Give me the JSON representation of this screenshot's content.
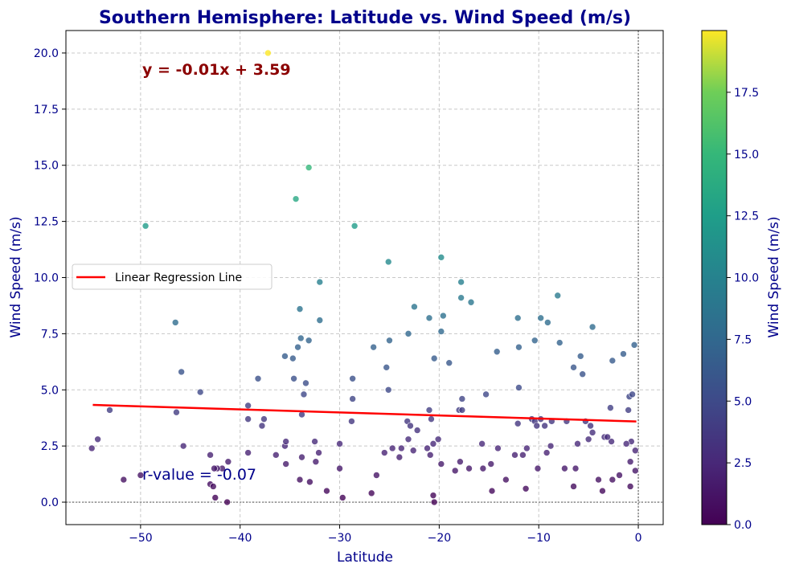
{
  "chart_data": {
    "type": "scatter",
    "title": "Southern Hemisphere: Latitude vs. Wind Speed (m/s)",
    "xlabel": "Latitude",
    "ylabel": "Wind Speed (m/s)",
    "xlim": [
      -57.5,
      2.5
    ],
    "ylim": [
      -1,
      21
    ],
    "xticks": [
      -50,
      -40,
      -30,
      -20,
      -10,
      0
    ],
    "xtick_labels": [
      "−50",
      "−40",
      "−30",
      "−20",
      "−10",
      "0"
    ],
    "yticks": [
      0,
      2.5,
      5,
      7.5,
      10,
      12.5,
      15,
      17.5,
      20
    ],
    "ytick_labels": [
      "0.0",
      "2.5",
      "5.0",
      "7.5",
      "10.0",
      "12.5",
      "15.0",
      "17.5",
      "20.0"
    ],
    "grid": true,
    "legend": {
      "placement": "center-left",
      "entries": [
        "Linear Regression Line"
      ]
    },
    "colorbar": {
      "label": "Wind Speed (m/s)",
      "colormap": "viridis",
      "range": [
        0,
        20
      ],
      "ticks": [
        0,
        2.5,
        5,
        7.5,
        10,
        12.5,
        15,
        17.5
      ],
      "tick_labels": [
        "0.0",
        "2.5",
        "5.0",
        "7.5",
        "10.0",
        "12.5",
        "15.0",
        "17.5"
      ]
    },
    "regression": {
      "slope": -0.0135,
      "intercept": 3.59,
      "x_range": [
        -54.8,
        -0.2
      ],
      "color": "#ff0000"
    },
    "annotations": {
      "equation": "y = -0.01x + 3.59",
      "r_value": "r-value = -0.07"
    },
    "colors": {
      "title": "#00008b",
      "axis_text": "#00008b",
      "equation": "#8b0000",
      "regression": "#ff0000"
    },
    "points": [
      [
        -37.2,
        20.0
      ],
      [
        -33.1,
        14.9
      ],
      [
        -34.4,
        13.5
      ],
      [
        -49.5,
        12.3
      ],
      [
        -28.5,
        12.3
      ],
      [
        -25.1,
        10.7
      ],
      [
        -19.8,
        10.9
      ],
      [
        -32.0,
        9.8
      ],
      [
        -17.8,
        9.8
      ],
      [
        -22.5,
        8.7
      ],
      [
        -34.0,
        8.6
      ],
      [
        -8.1,
        9.2
      ],
      [
        -17.8,
        9.1
      ],
      [
        -16.8,
        8.9
      ],
      [
        -46.5,
        8.0
      ],
      [
        -32.0,
        8.1
      ],
      [
        -21.0,
        8.2
      ],
      [
        -19.6,
        8.3
      ],
      [
        -12.1,
        8.2
      ],
      [
        -9.8,
        8.2
      ],
      [
        -9.1,
        8.0
      ],
      [
        -4.6,
        7.8
      ],
      [
        -19.8,
        7.6
      ],
      [
        -23.1,
        7.5
      ],
      [
        -33.9,
        7.3
      ],
      [
        -33.1,
        7.2
      ],
      [
        -25.0,
        7.2
      ],
      [
        -10.4,
        7.2
      ],
      [
        -7.9,
        7.1
      ],
      [
        -0.4,
        7.0
      ],
      [
        -26.6,
        6.9
      ],
      [
        -34.2,
        6.9
      ],
      [
        -12.0,
        6.9
      ],
      [
        -14.2,
        6.7
      ],
      [
        -35.5,
        6.5
      ],
      [
        -34.7,
        6.4
      ],
      [
        -20.5,
        6.4
      ],
      [
        -19.0,
        6.2
      ],
      [
        -5.8,
        6.5
      ],
      [
        -1.5,
        6.6
      ],
      [
        -2.6,
        6.3
      ],
      [
        -6.5,
        6.0
      ],
      [
        -25.3,
        6.0
      ],
      [
        -45.9,
        5.8
      ],
      [
        -5.6,
        5.7
      ],
      [
        -38.2,
        5.5
      ],
      [
        -34.6,
        5.5
      ],
      [
        -33.4,
        5.3
      ],
      [
        -28.7,
        5.5
      ],
      [
        -12.0,
        5.1
      ],
      [
        -25.1,
        5.0
      ],
      [
        -44.0,
        4.9
      ],
      [
        -33.6,
        4.8
      ],
      [
        -28.7,
        4.6
      ],
      [
        -17.7,
        4.6
      ],
      [
        -15.3,
        4.8
      ],
      [
        -0.9,
        4.7
      ],
      [
        -0.6,
        4.8
      ],
      [
        -39.2,
        4.3
      ],
      [
        -53.1,
        4.1
      ],
      [
        -46.4,
        4.0
      ],
      [
        -21.0,
        4.1
      ],
      [
        -18.0,
        4.1
      ],
      [
        -17.7,
        4.1
      ],
      [
        -2.8,
        4.2
      ],
      [
        -1.0,
        4.1
      ],
      [
        -33.8,
        3.9
      ],
      [
        -39.2,
        3.7
      ],
      [
        -37.6,
        3.7
      ],
      [
        -23.2,
        3.6
      ],
      [
        -20.8,
        3.7
      ],
      [
        -12.1,
        3.5
      ],
      [
        -10.7,
        3.7
      ],
      [
        -10.4,
        3.6
      ],
      [
        -9.8,
        3.7
      ],
      [
        -8.7,
        3.6
      ],
      [
        -7.2,
        3.6
      ],
      [
        -5.3,
        3.6
      ],
      [
        -37.8,
        3.4
      ],
      [
        -28.8,
        3.6
      ],
      [
        -22.9,
        3.4
      ],
      [
        -10.2,
        3.4
      ],
      [
        -9.4,
        3.4
      ],
      [
        -4.8,
        3.4
      ],
      [
        -54.3,
        2.8
      ],
      [
        -45.7,
        2.5
      ],
      [
        -35.5,
        2.5
      ],
      [
        -35.4,
        2.7
      ],
      [
        -32.5,
        2.7
      ],
      [
        -30.0,
        2.6
      ],
      [
        -23.1,
        2.8
      ],
      [
        -22.2,
        3.2
      ],
      [
        -20.1,
        2.8
      ],
      [
        -4.6,
        3.1
      ],
      [
        -3.4,
        2.9
      ],
      [
        -2.7,
        2.7
      ],
      [
        -0.7,
        2.7
      ],
      [
        -54.9,
        2.4
      ],
      [
        -43.0,
        2.1
      ],
      [
        -39.2,
        2.2
      ],
      [
        -36.4,
        2.1
      ],
      [
        -33.8,
        2.0
      ],
      [
        -32.1,
        2.2
      ],
      [
        -25.5,
        2.2
      ],
      [
        -24.7,
        2.4
      ],
      [
        -23.8,
        2.4
      ],
      [
        -22.6,
        2.3
      ],
      [
        -21.2,
        2.4
      ],
      [
        -20.6,
        2.6
      ],
      [
        -15.7,
        2.6
      ],
      [
        -14.1,
        2.4
      ],
      [
        -11.2,
        2.4
      ],
      [
        -9.2,
        2.2
      ],
      [
        -6.1,
        2.6
      ],
      [
        -5.0,
        2.8
      ],
      [
        -3.1,
        2.9
      ],
      [
        -1.2,
        2.6
      ],
      [
        -0.3,
        2.3
      ],
      [
        -35.4,
        1.7
      ],
      [
        -32.4,
        1.8
      ],
      [
        -30.0,
        1.5
      ],
      [
        -26.3,
        1.2
      ],
      [
        -24.0,
        2.0
      ],
      [
        -20.9,
        2.1
      ],
      [
        -19.8,
        1.7
      ],
      [
        -18.4,
        1.4
      ],
      [
        -17.9,
        1.8
      ],
      [
        -17.0,
        1.5
      ],
      [
        -15.6,
        1.5
      ],
      [
        -14.8,
        1.7
      ],
      [
        -13.3,
        1.0
      ],
      [
        -12.4,
        2.1
      ],
      [
        -11.6,
        2.1
      ],
      [
        -10.1,
        1.5
      ],
      [
        -7.4,
        1.5
      ],
      [
        -6.3,
        1.5
      ],
      [
        -2.6,
        1.0
      ],
      [
        -1.9,
        1.2
      ],
      [
        -0.8,
        1.8
      ],
      [
        -0.3,
        1.4
      ],
      [
        -41.2,
        1.8
      ],
      [
        -41.8,
        1.5
      ],
      [
        -42.3,
        1.5
      ],
      [
        -42.6,
        1.5
      ],
      [
        -50.0,
        1.2
      ],
      [
        -51.7,
        1.0
      ],
      [
        -43.0,
        0.8
      ],
      [
        -42.7,
        0.7
      ],
      [
        -42.5,
        0.2
      ],
      [
        -41.3,
        0.0
      ],
      [
        -34.0,
        1.0
      ],
      [
        -33.0,
        0.9
      ],
      [
        -31.3,
        0.5
      ],
      [
        -29.7,
        0.2
      ],
      [
        -26.8,
        0.4
      ],
      [
        -20.6,
        0.3
      ],
      [
        -20.5,
        0.0
      ],
      [
        -14.7,
        0.5
      ],
      [
        -11.3,
        0.6
      ],
      [
        -6.5,
        0.7
      ],
      [
        -3.6,
        0.5
      ],
      [
        -0.8,
        0.7
      ],
      [
        -4.0,
        1.0
      ],
      [
        -8.8,
        2.5
      ]
    ]
  }
}
